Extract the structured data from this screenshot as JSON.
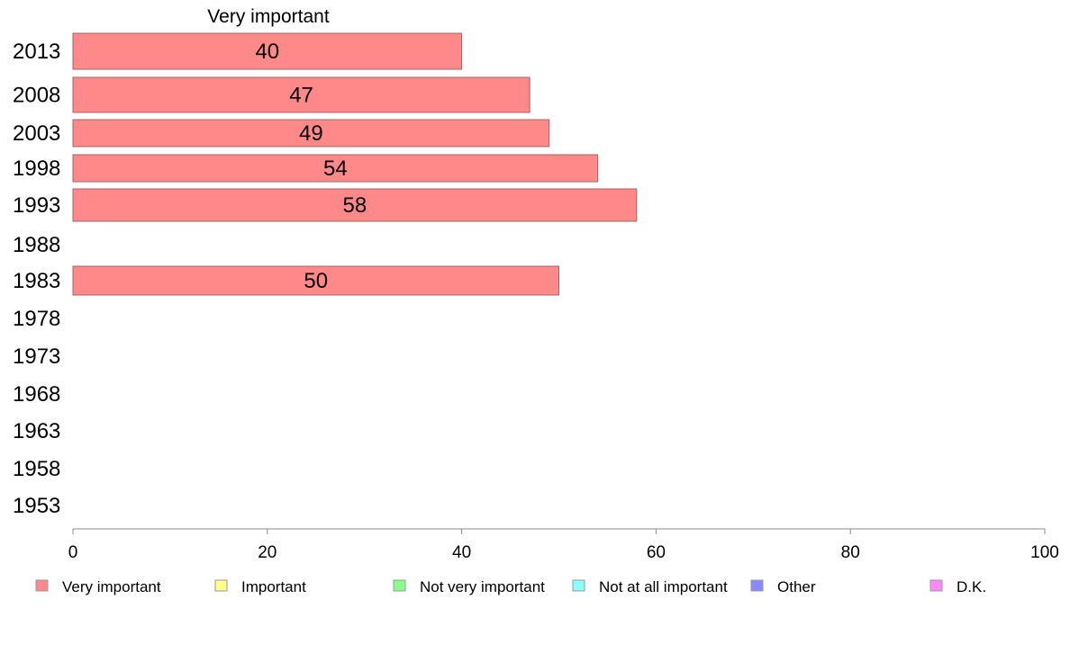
{
  "chart_data": {
    "type": "bar",
    "orientation": "horizontal",
    "header_label": "Very important",
    "categories": [
      "2013",
      "2008",
      "2003",
      "1998",
      "1993",
      "1988",
      "1983",
      "1978",
      "1973",
      "1968",
      "1963",
      "1958",
      "1953"
    ],
    "series": [
      {
        "name": "Very important",
        "color": "#ff8888",
        "values": [
          40,
          47,
          49,
          54,
          58,
          null,
          50,
          null,
          null,
          null,
          null,
          null,
          null
        ]
      }
    ],
    "xlim": [
      0,
      100
    ],
    "xticks": [
      0,
      20,
      40,
      60,
      80,
      100
    ],
    "legend": [
      {
        "label": "Very important",
        "color": "#ff8888"
      },
      {
        "label": "Important",
        "color": "#ffff88"
      },
      {
        "label": "Not very important",
        "color": "#88ff88"
      },
      {
        "label": "Not at all important",
        "color": "#88ffff"
      },
      {
        "label": "Other",
        "color": "#8888ff"
      },
      {
        "label": "D.K.",
        "color": "#ff88ff"
      }
    ],
    "legend_position": "bottom",
    "grid": false
  }
}
